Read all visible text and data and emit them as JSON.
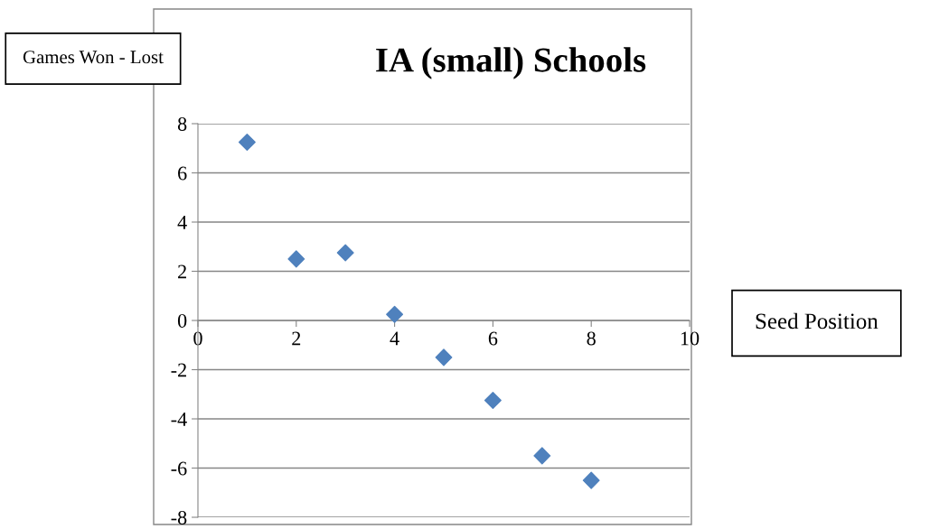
{
  "chart_data": {
    "type": "scatter",
    "title": "IA (small) Schools",
    "ylabel": "Games Won - Lost",
    "xlabel": "Seed Position",
    "x": [
      1,
      2,
      3,
      4,
      5,
      6,
      7,
      8
    ],
    "values": [
      7.25,
      2.5,
      2.75,
      0.25,
      -1.5,
      -3.25,
      -5.5,
      -6.5
    ],
    "color": "#4f81bd",
    "marker": "diamond",
    "xlim": [
      0,
      10
    ],
    "xticks": [
      0,
      2,
      4,
      6,
      8,
      10
    ],
    "ylim": [
      -8,
      8
    ],
    "yticks": [
      -8,
      -6,
      -4,
      -2,
      0,
      2,
      4,
      6,
      8
    ],
    "grid": "y",
    "legend": false
  }
}
